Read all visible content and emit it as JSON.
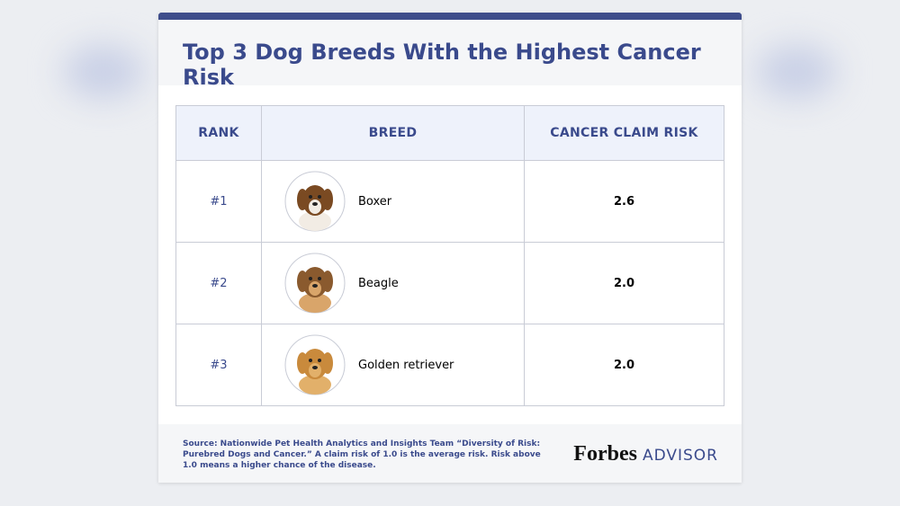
{
  "header": {
    "title": "Top 3 Dog Breeds With the Highest Cancer Risk"
  },
  "table": {
    "columns": [
      "RANK",
      "BREED",
      "CANCER CLAIM RISK"
    ],
    "rows": [
      [
        "#1",
        "Boxer",
        "2.6"
      ],
      [
        "#2",
        "Beagle",
        "2.0"
      ],
      [
        "#3",
        "Golden retriever",
        "2.0"
      ]
    ]
  },
  "footer": {
    "source": "Source: Nationwide Pet Health Analytics and Insights Team “Diversity of Risk: Purebred Dogs and Cancer.” A claim risk of 1.0 is the average risk. Risk above 1.0 means a higher chance of the disease.",
    "logo": {
      "brand": "Forbes",
      "product": "ADVISOR"
    }
  }
}
